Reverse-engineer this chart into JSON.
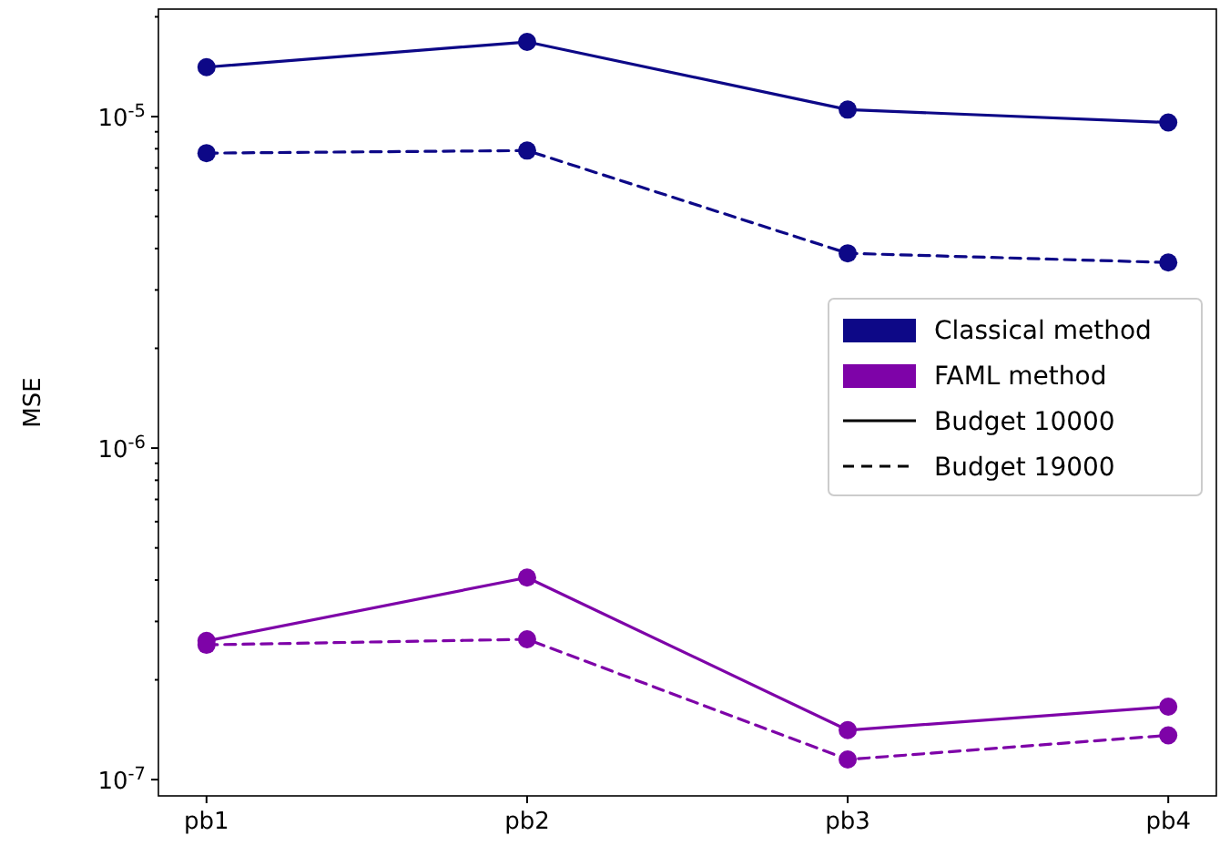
{
  "chart_data": {
    "type": "line",
    "ylabel": "MSE",
    "log": "y",
    "categories": [
      "pb1",
      "pb2",
      "pb3",
      "pb4"
    ],
    "ylim": [
      8.93e-08,
      2.11e-05
    ],
    "yticks": [
      {
        "value": 1e-07,
        "label": "10$^{-7}$"
      },
      {
        "value": 2e-07,
        "label": null
      },
      {
        "value": 3e-07,
        "label": null
      },
      {
        "value": 4e-07,
        "label": null
      },
      {
        "value": 5e-07,
        "label": null
      },
      {
        "value": 6e-07,
        "label": null
      },
      {
        "value": 7e-07,
        "label": null
      },
      {
        "value": 8e-07,
        "label": null
      },
      {
        "value": 9e-07,
        "label": null
      },
      {
        "value": 1e-06,
        "label": "10$^{-6}$"
      },
      {
        "value": 2e-06,
        "label": null
      },
      {
        "value": 3e-06,
        "label": null
      },
      {
        "value": 4e-06,
        "label": null
      },
      {
        "value": 5e-06,
        "label": null
      },
      {
        "value": 6e-06,
        "label": null
      },
      {
        "value": 7e-06,
        "label": null
      },
      {
        "value": 8e-06,
        "label": null
      },
      {
        "value": 9e-06,
        "label": null
      },
      {
        "value": 1e-05,
        "label": "10$^{-5}$"
      },
      {
        "value": 2e-05,
        "label": null
      }
    ],
    "marker": "circle",
    "legend": "right",
    "grid": false,
    "series": [
      {
        "name": "Classical method",
        "color": "#0d0887",
        "line_style": "solid",
        "values": [
          1.41e-05,
          1.68e-05,
          1.05e-05,
          9.6e-06
        ]
      },
      {
        "name": "FAML method",
        "color": "#7e03a8",
        "line_style": "solid",
        "values": [
          2.62e-07,
          4.07e-07,
          1.41e-07,
          1.66e-07
        ]
      },
      {
        "color": "#0d0887",
        "line_style": "dashed",
        "values": [
          7.76e-06,
          7.9e-06,
          3.87e-06,
          3.63e-06
        ]
      },
      {
        "color": "#7e03a8",
        "line_style": "dashed",
        "values": [
          2.55e-07,
          2.65e-07,
          1.15e-07,
          1.36e-07
        ]
      },
      {
        "name": "Budget 10000",
        "color": "#000000",
        "line_style": "solid",
        "values": [
          null,
          null,
          null,
          null
        ]
      },
      {
        "name": "Budget 19000",
        "color": "#000000",
        "line_style": "dashed",
        "values": [
          null,
          null,
          null,
          null
        ]
      }
    ]
  }
}
